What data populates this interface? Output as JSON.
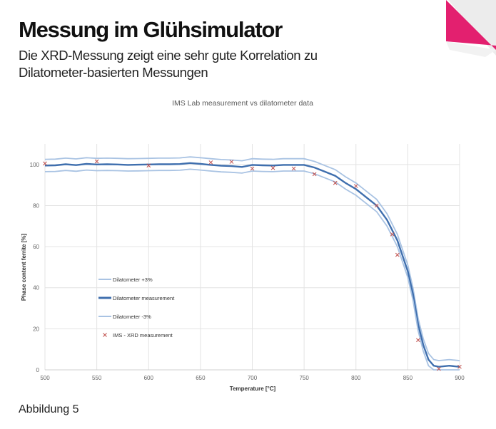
{
  "slide": {
    "title": "Messung im Glühsimulator",
    "subtitle_line1": "Die XRD-Messung zeigt eine sehr gute Korrelation zu",
    "subtitle_line2": "Dilatometer-basierten Messungen",
    "caption": "Abbildung 5",
    "accent_color": "#e3206f"
  },
  "chart_data": {
    "type": "line",
    "title": "IMS Lab measurement vs dilatometer data",
    "xlabel": "Temperature [°C]",
    "ylabel": "Phase content ferrite [%]",
    "xlim": [
      500,
      900
    ],
    "ylim": [
      0,
      110
    ],
    "xticks": [
      500,
      550,
      600,
      650,
      700,
      750,
      800,
      850,
      900
    ],
    "yticks": [
      0,
      20,
      40,
      60,
      80,
      100
    ],
    "grid": true,
    "legend_position": "center-left",
    "series": [
      {
        "name": "Dilatometer +3%",
        "color": "#a9c3e3",
        "kind": "line",
        "offset": 3
      },
      {
        "name": "Dilatometer measurement",
        "color": "#3f6fae",
        "kind": "line",
        "x": [
          500,
          510,
          520,
          530,
          540,
          550,
          560,
          570,
          580,
          590,
          600,
          610,
          620,
          630,
          640,
          650,
          660,
          670,
          680,
          690,
          700,
          710,
          720,
          730,
          740,
          750,
          760,
          770,
          780,
          790,
          800,
          810,
          820,
          830,
          840,
          850,
          855,
          860,
          865,
          870,
          875,
          880,
          890,
          900
        ],
        "y": [
          99.5,
          99.6,
          100.1,
          99.7,
          100.3,
          100,
          100.1,
          100,
          99.8,
          99.9,
          100,
          100.1,
          100.1,
          100.2,
          100.7,
          100.3,
          99.8,
          99.4,
          99.2,
          98.8,
          99.8,
          99.6,
          99.5,
          99.8,
          99.8,
          99.8,
          98.5,
          96.5,
          94.5,
          91,
          88,
          84,
          80,
          73,
          63,
          48,
          37,
          22,
          12,
          5,
          2,
          1.5,
          2,
          1.5
        ]
      },
      {
        "name": "Dilatometer -3%",
        "color": "#a9c3e3",
        "kind": "line",
        "offset": -3
      },
      {
        "name": "IMS - XRD measurement",
        "color": "#c0504d",
        "kind": "scatter",
        "x": [
          500,
          550,
          600,
          660,
          680,
          700,
          720,
          740,
          760,
          780,
          800,
          820,
          835,
          840,
          860,
          880,
          900
        ],
        "y": [
          100.5,
          101.5,
          99.5,
          101,
          101.3,
          98,
          98.3,
          98,
          95.3,
          91,
          89.5,
          80,
          66,
          56,
          14.5,
          0.5,
          1.5
        ]
      }
    ]
  }
}
